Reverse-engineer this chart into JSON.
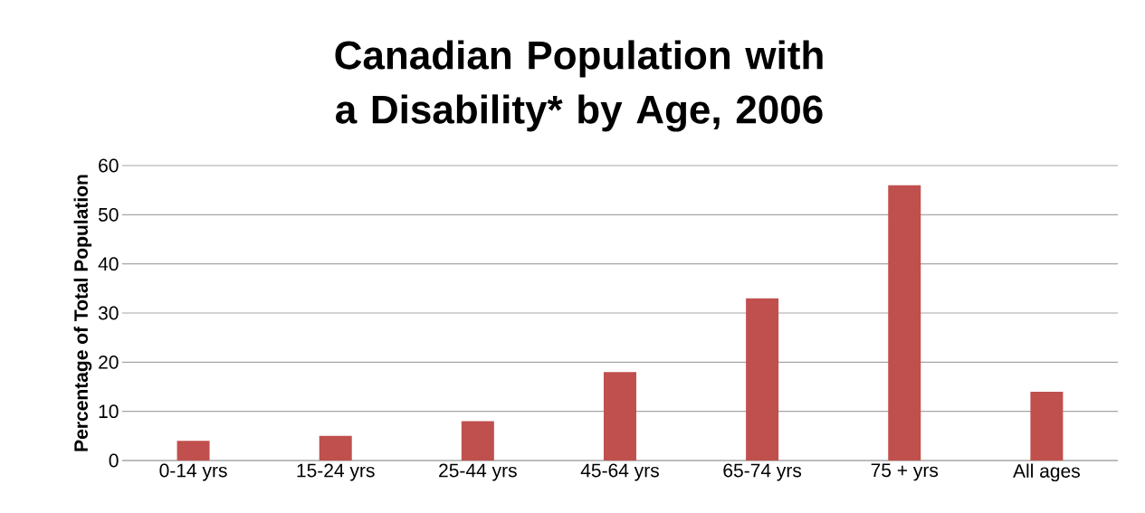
{
  "chart_data": {
    "type": "bar",
    "title": "Canadian Population with a Disability* by Age, 2006",
    "ylabel": "Percentage of Total Population",
    "categories": [
      "0-14 yrs",
      "15-24 yrs",
      "25-44 yrs",
      "45-64 yrs",
      "65-74 yrs",
      "75 + yrs",
      "All ages"
    ],
    "values": [
      4,
      5,
      8,
      18,
      33,
      56,
      14
    ],
    "color": "#c0504d",
    "ylim": [
      0,
      60
    ],
    "yticks": [
      0,
      10,
      20,
      30,
      40,
      50,
      60
    ],
    "grid": "y"
  }
}
